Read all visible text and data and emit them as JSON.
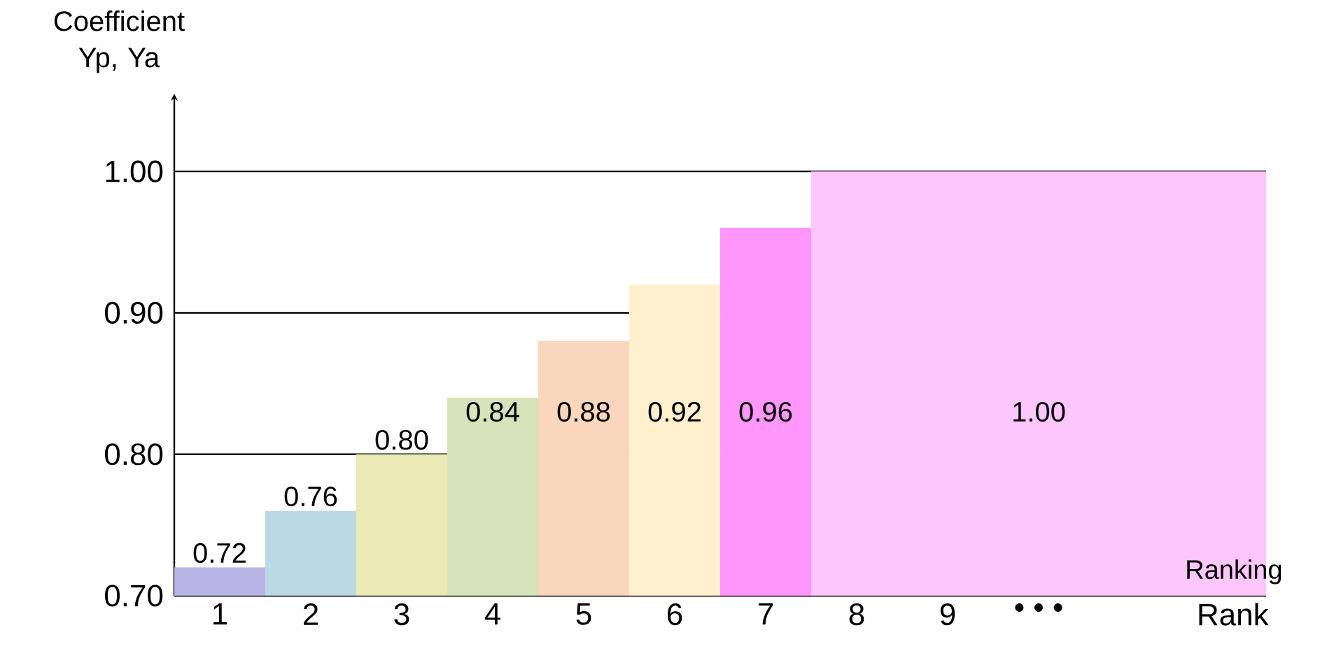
{
  "chart_data": {
    "type": "bar",
    "ylabel": "Coefficient Yp, Ya",
    "xlabel": "Rank",
    "categories": [
      "1",
      "2",
      "3",
      "4",
      "5",
      "6",
      "7",
      "8",
      "9",
      "• • •",
      null,
      null
    ],
    "values": [
      0.72,
      0.76,
      0.8,
      0.84,
      0.88,
      0.92,
      0.96,
      1.0,
      1.0,
      1.0,
      1.0,
      1.0
    ],
    "colors": [
      "#b9b4e6",
      "#bcd8e4",
      "#eceab4",
      "#d6e4bc",
      "#fad6bc",
      "#fef0cc",
      "#ff96fc",
      "#fdc6fd",
      "#fdc6fd",
      "#fdc6fd",
      "#fdc6fd",
      "#fdc6fd"
    ],
    "value_labels": [
      "0.72",
      "0.76",
      "0.80",
      "0.84",
      "0.88",
      "0.92",
      "0.96",
      null,
      null,
      "1.00",
      null,
      null
    ],
    "ylim": [
      0.7,
      1.05
    ],
    "yticks": [
      {
        "value": 0.7,
        "label": "0.70"
      },
      {
        "value": 0.8,
        "label": "0.80"
      },
      {
        "value": 0.9,
        "label": "0.90"
      },
      {
        "value": 1.0,
        "label": "1.00"
      }
    ],
    "grid": "y",
    "annotations": [
      "Ranking"
    ]
  }
}
